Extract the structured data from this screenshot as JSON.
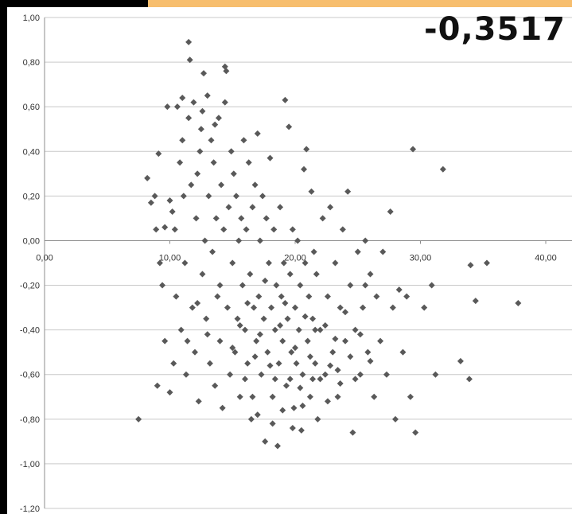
{
  "correlation_label": "-0,3517",
  "colors": {
    "accent_orange": "#f7be6e",
    "frame": "#000000",
    "marker": "#595959",
    "grid": "#c9c9c9"
  },
  "chart_data": {
    "type": "scatter",
    "title": "",
    "xlabel": "",
    "ylabel": "",
    "xlim": [
      0,
      40
    ],
    "ylim": [
      -1.2,
      1.0
    ],
    "x_ticks": [
      "0,00",
      "10,00",
      "20,00",
      "30,00",
      "40,00"
    ],
    "y_ticks": [
      "1,00",
      "0,80",
      "0,60",
      "0,40",
      "0,20",
      "0,00",
      "-0,20",
      "-0,40",
      "-0,60",
      "-0,80",
      "-1,00",
      "-1,20"
    ],
    "grid": true,
    "marker": "diamond",
    "points": [
      [
        7.5,
        -0.8
      ],
      [
        8.2,
        0.28
      ],
      [
        8.5,
        0.17
      ],
      [
        8.8,
        0.2
      ],
      [
        9.1,
        0.39
      ],
      [
        9.0,
        -0.65
      ],
      [
        9.4,
        -0.2
      ],
      [
        9.6,
        0.06
      ],
      [
        9.8,
        0.6
      ],
      [
        10.0,
        -0.68
      ],
      [
        10.2,
        0.13
      ],
      [
        10.3,
        -0.55
      ],
      [
        10.5,
        -0.25
      ],
      [
        10.6,
        0.6
      ],
      [
        10.8,
        0.35
      ],
      [
        10.9,
        -0.4
      ],
      [
        11.0,
        0.45
      ],
      [
        11.1,
        0.2
      ],
      [
        11.2,
        -0.1
      ],
      [
        11.3,
        -0.6
      ],
      [
        11.5,
        0.55
      ],
      [
        11.5,
        0.89
      ],
      [
        11.6,
        0.81
      ],
      [
        11.7,
        0.25
      ],
      [
        11.8,
        -0.3
      ],
      [
        11.9,
        0.62
      ],
      [
        12.0,
        -0.5
      ],
      [
        12.1,
        0.1
      ],
      [
        12.2,
        0.3
      ],
      [
        12.3,
        -0.72
      ],
      [
        12.4,
        0.4
      ],
      [
        12.5,
        0.5
      ],
      [
        12.6,
        -0.15
      ],
      [
        12.7,
        0.75
      ],
      [
        12.8,
        0.0
      ],
      [
        12.9,
        -0.35
      ],
      [
        13.0,
        0.65
      ],
      [
        13.1,
        0.2
      ],
      [
        13.2,
        -0.55
      ],
      [
        13.3,
        0.45
      ],
      [
        13.4,
        -0.05
      ],
      [
        13.5,
        0.35
      ],
      [
        13.6,
        -0.65
      ],
      [
        13.7,
        0.1
      ],
      [
        13.8,
        -0.25
      ],
      [
        13.9,
        0.55
      ],
      [
        14.0,
        -0.45
      ],
      [
        14.1,
        0.25
      ],
      [
        14.2,
        -0.75
      ],
      [
        14.3,
        0.05
      ],
      [
        14.4,
        0.78
      ],
      [
        14.5,
        0.76
      ],
      [
        14.6,
        -0.3
      ],
      [
        14.7,
        0.15
      ],
      [
        14.8,
        -0.6
      ],
      [
        14.9,
        0.4
      ],
      [
        15.0,
        -0.1
      ],
      [
        15.1,
        0.3
      ],
      [
        15.2,
        -0.5
      ],
      [
        15.3,
        0.2
      ],
      [
        15.4,
        -0.35
      ],
      [
        15.5,
        0.0
      ],
      [
        15.6,
        -0.7
      ],
      [
        15.7,
        0.1
      ],
      [
        15.8,
        -0.2
      ],
      [
        15.9,
        0.45
      ],
      [
        16.0,
        -0.4
      ],
      [
        16.1,
        0.05
      ],
      [
        16.2,
        -0.55
      ],
      [
        16.3,
        0.35
      ],
      [
        16.4,
        -0.15
      ],
      [
        16.5,
        -0.8
      ],
      [
        16.6,
        0.15
      ],
      [
        16.7,
        -0.3
      ],
      [
        16.8,
        0.25
      ],
      [
        16.9,
        -0.45
      ],
      [
        17.0,
        0.48
      ],
      [
        17.1,
        -0.25
      ],
      [
        17.2,
        0.0
      ],
      [
        17.3,
        -0.6
      ],
      [
        17.4,
        0.2
      ],
      [
        17.5,
        -0.35
      ],
      [
        17.6,
        -0.9
      ],
      [
        17.7,
        0.1
      ],
      [
        17.8,
        -0.5
      ],
      [
        17.9,
        -0.1
      ],
      [
        18.0,
        0.37
      ],
      [
        18.1,
        -0.3
      ],
      [
        18.2,
        -0.7
      ],
      [
        18.3,
        0.05
      ],
      [
        18.4,
        -0.4
      ],
      [
        18.5,
        -0.2
      ],
      [
        18.6,
        -0.92
      ],
      [
        18.7,
        -0.55
      ],
      [
        18.8,
        0.15
      ],
      [
        18.9,
        -0.25
      ],
      [
        19.0,
        -0.45
      ],
      [
        19.1,
        -0.1
      ],
      [
        19.2,
        0.63
      ],
      [
        19.3,
        -0.65
      ],
      [
        19.4,
        -0.35
      ],
      [
        19.5,
        0.51
      ],
      [
        19.6,
        -0.15
      ],
      [
        19.7,
        -0.5
      ],
      [
        19.8,
        0.05
      ],
      [
        19.9,
        -0.75
      ],
      [
        20.0,
        -0.3
      ],
      [
        20.1,
        -0.55
      ],
      [
        20.2,
        0.0
      ],
      [
        20.3,
        -0.4
      ],
      [
        20.4,
        -0.2
      ],
      [
        20.5,
        -0.85
      ],
      [
        20.6,
        -0.6
      ],
      [
        20.7,
        0.32
      ],
      [
        20.8,
        -0.1
      ],
      [
        20.9,
        0.41
      ],
      [
        21.0,
        -0.45
      ],
      [
        21.1,
        -0.25
      ],
      [
        21.2,
        -0.7
      ],
      [
        21.3,
        0.22
      ],
      [
        21.4,
        -0.35
      ],
      [
        21.5,
        -0.05
      ],
      [
        21.6,
        -0.55
      ],
      [
        21.7,
        -0.15
      ],
      [
        21.8,
        -0.8
      ],
      [
        22.0,
        -0.4
      ],
      [
        22.2,
        0.1
      ],
      [
        22.4,
        -0.6
      ],
      [
        22.6,
        -0.25
      ],
      [
        22.8,
        0.15
      ],
      [
        23.0,
        -0.5
      ],
      [
        23.2,
        -0.1
      ],
      [
        23.4,
        -0.7
      ],
      [
        23.6,
        -0.3
      ],
      [
        23.8,
        0.05
      ],
      [
        24.0,
        -0.45
      ],
      [
        24.2,
        0.22
      ],
      [
        24.4,
        -0.2
      ],
      [
        24.6,
        -0.86
      ],
      [
        24.8,
        -0.4
      ],
      [
        25.0,
        -0.05
      ],
      [
        25.2,
        -0.6
      ],
      [
        25.4,
        -0.3
      ],
      [
        25.6,
        0.0
      ],
      [
        25.8,
        -0.5
      ],
      [
        26.0,
        -0.15
      ],
      [
        26.3,
        -0.7
      ],
      [
        26.5,
        -0.25
      ],
      [
        26.8,
        -0.45
      ],
      [
        27.0,
        -0.05
      ],
      [
        27.3,
        -0.6
      ],
      [
        27.6,
        0.13
      ],
      [
        27.8,
        -0.3
      ],
      [
        28.0,
        -0.8
      ],
      [
        28.3,
        -0.22
      ],
      [
        28.6,
        -0.5
      ],
      [
        28.9,
        -0.25
      ],
      [
        29.2,
        -0.7
      ],
      [
        29.4,
        0.41
      ],
      [
        29.6,
        -0.86
      ],
      [
        30.3,
        -0.3
      ],
      [
        30.9,
        -0.2
      ],
      [
        31.2,
        -0.6
      ],
      [
        31.8,
        0.32
      ],
      [
        33.2,
        -0.54
      ],
      [
        33.9,
        -0.62
      ],
      [
        34.0,
        -0.11
      ],
      [
        34.4,
        -0.27
      ],
      [
        35.3,
        -0.1
      ],
      [
        37.8,
        -0.28
      ],
      [
        12.2,
        -0.28
      ],
      [
        13.0,
        -0.42
      ],
      [
        14.0,
        -0.2
      ],
      [
        15.0,
        -0.48
      ],
      [
        15.6,
        -0.38
      ],
      [
        16.2,
        -0.28
      ],
      [
        16.8,
        -0.52
      ],
      [
        17.2,
        -0.42
      ],
      [
        17.6,
        -0.18
      ],
      [
        18.0,
        -0.56
      ],
      [
        18.4,
        -0.62
      ],
      [
        18.8,
        -0.38
      ],
      [
        19.2,
        -0.28
      ],
      [
        19.6,
        -0.62
      ],
      [
        20.0,
        -0.48
      ],
      [
        20.4,
        -0.66
      ],
      [
        20.8,
        -0.34
      ],
      [
        21.2,
        -0.52
      ],
      [
        21.6,
        -0.4
      ],
      [
        22.0,
        -0.62
      ],
      [
        22.4,
        -0.38
      ],
      [
        22.8,
        -0.56
      ],
      [
        23.2,
        -0.44
      ],
      [
        23.6,
        -0.64
      ],
      [
        24.0,
        -0.32
      ],
      [
        24.4,
        -0.52
      ],
      [
        24.8,
        -0.62
      ],
      [
        25.2,
        -0.42
      ],
      [
        25.6,
        -0.2
      ],
      [
        26.0,
        -0.54
      ],
      [
        13.6,
        0.52
      ],
      [
        14.4,
        0.62
      ],
      [
        12.6,
        0.58
      ],
      [
        11.0,
        0.64
      ],
      [
        10.4,
        0.05
      ],
      [
        10.0,
        0.18
      ],
      [
        9.6,
        -0.45
      ],
      [
        9.2,
        -0.1
      ],
      [
        8.9,
        0.05
      ],
      [
        11.4,
        -0.45
      ],
      [
        16.0,
        -0.62
      ],
      [
        16.6,
        -0.7
      ],
      [
        17.0,
        -0.78
      ],
      [
        18.2,
        -0.82
      ],
      [
        19.0,
        -0.76
      ],
      [
        19.8,
        -0.84
      ],
      [
        20.6,
        -0.74
      ],
      [
        21.4,
        -0.62
      ],
      [
        22.6,
        -0.72
      ],
      [
        23.4,
        -0.58
      ]
    ]
  }
}
